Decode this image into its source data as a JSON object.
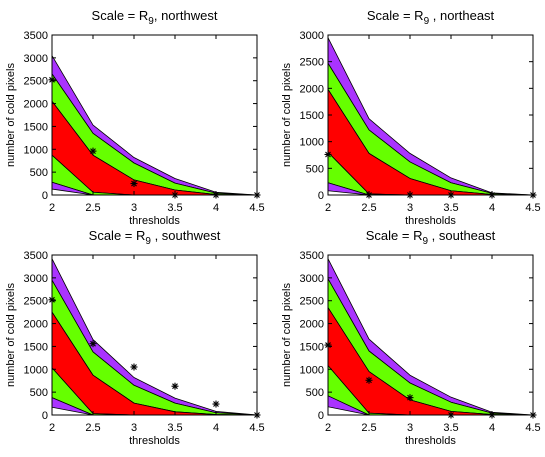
{
  "chart_data": [
    {
      "type": "area",
      "title": {
        "prefix": "Scale = R",
        "subscript": "9",
        "suffix": ",  northwest"
      },
      "xlabel": "thresholds",
      "ylabel": "number of cold pixels",
      "xlim": [
        2,
        4.5
      ],
      "ylim": [
        0,
        3500
      ],
      "x": [
        2,
        2.5,
        3,
        3.5,
        4,
        4.5
      ],
      "xticks": [
        "2",
        "2.5",
        "3",
        "3.5",
        "4",
        "4.5"
      ],
      "yticks": [
        "0",
        "500",
        "1000",
        "1500",
        "2000",
        "2500",
        "3000",
        "3500"
      ],
      "bands": [
        {
          "color": "#aa33ff",
          "upper": [
            3050,
            1530,
            820,
            360,
            60,
            0
          ],
          "lower": [
            2650,
            1350,
            700,
            260,
            40,
            0
          ]
        },
        {
          "color": "#66ff00",
          "upper": [
            2650,
            1350,
            700,
            260,
            40,
            0
          ],
          "lower": [
            2050,
            870,
            330,
            110,
            10,
            0
          ]
        },
        {
          "color": "#ff0000",
          "upper": [
            2050,
            870,
            330,
            110,
            10,
            0
          ],
          "lower": [
            870,
            60,
            0,
            0,
            0,
            0
          ]
        },
        {
          "color": "#66ff00",
          "upper": [
            870,
            60,
            0,
            0,
            0,
            0
          ],
          "lower": [
            280,
            0,
            0,
            0,
            0,
            0
          ]
        },
        {
          "color": "#aa33ff",
          "upper": [
            280,
            0,
            0,
            0,
            0,
            0
          ],
          "lower": [
            130,
            0,
            0,
            0,
            0,
            0
          ]
        }
      ],
      "observed": {
        "x": [
          2,
          2.5,
          3,
          3.5,
          4,
          4.5
        ],
        "y": [
          2520,
          960,
          250,
          0,
          0,
          0
        ]
      }
    },
    {
      "type": "area",
      "title": {
        "prefix": "Scale = R",
        "subscript": "9",
        "suffix": " , northeast"
      },
      "xlabel": "thresholds",
      "ylabel": "number of cold pixels",
      "xlim": [
        2,
        4.5
      ],
      "ylim": [
        0,
        3000
      ],
      "x": [
        2,
        2.5,
        3,
        3.5,
        4,
        4.5
      ],
      "xticks": [
        "2",
        "2.5",
        "3",
        "3.5",
        "4",
        "4.5"
      ],
      "yticks": [
        "0",
        "500",
        "1000",
        "1500",
        "2000",
        "2500",
        "3000"
      ],
      "bands": [
        {
          "color": "#aa33ff",
          "upper": [
            2950,
            1430,
            780,
            320,
            40,
            0
          ],
          "lower": [
            2470,
            1220,
            620,
            230,
            30,
            0
          ]
        },
        {
          "color": "#66ff00",
          "upper": [
            2470,
            1220,
            620,
            230,
            30,
            0
          ],
          "lower": [
            1980,
            780,
            310,
            80,
            10,
            0
          ]
        },
        {
          "color": "#ff0000",
          "upper": [
            1980,
            780,
            310,
            80,
            10,
            0
          ],
          "lower": [
            800,
            20,
            0,
            0,
            0,
            0
          ]
        },
        {
          "color": "#66ff00",
          "upper": [
            800,
            20,
            0,
            0,
            0,
            0
          ],
          "lower": [
            230,
            0,
            0,
            0,
            0,
            0
          ]
        },
        {
          "color": "#aa33ff",
          "upper": [
            230,
            0,
            0,
            0,
            0,
            0
          ],
          "lower": [
            80,
            0,
            0,
            0,
            0,
            0
          ]
        }
      ],
      "observed": {
        "x": [
          2,
          2.5,
          3,
          3.5,
          4,
          4.5
        ],
        "y": [
          760,
          0,
          0,
          0,
          0,
          0
        ]
      }
    },
    {
      "type": "area",
      "title": {
        "prefix": "Scale = R",
        "subscript": "9",
        "suffix": " , southwest"
      },
      "xlabel": "thresholds",
      "ylabel": "number of cold pixels",
      "xlim": [
        2,
        4.5
      ],
      "ylim": [
        0,
        3500
      ],
      "x": [
        2,
        2.5,
        3,
        3.5,
        4,
        4.5
      ],
      "xticks": [
        "2",
        "2.5",
        "3",
        "3.5",
        "4",
        "4.5"
      ],
      "yticks": [
        "0",
        "500",
        "1000",
        "1500",
        "2000",
        "2500",
        "3000",
        "3500"
      ],
      "bands": [
        {
          "color": "#aa33ff",
          "upper": [
            3420,
            1650,
            820,
            370,
            80,
            0
          ],
          "lower": [
            2950,
            1380,
            650,
            260,
            50,
            0
          ]
        },
        {
          "color": "#66ff00",
          "upper": [
            2950,
            1380,
            650,
            260,
            50,
            0
          ],
          "lower": [
            2250,
            870,
            260,
            70,
            10,
            0
          ]
        },
        {
          "color": "#ff0000",
          "upper": [
            2250,
            870,
            260,
            70,
            10,
            0
          ],
          "lower": [
            1030,
            30,
            0,
            0,
            0,
            0
          ]
        },
        {
          "color": "#66ff00",
          "upper": [
            1030,
            30,
            0,
            0,
            0,
            0
          ],
          "lower": [
            380,
            0,
            0,
            0,
            0,
            0
          ]
        },
        {
          "color": "#aa33ff",
          "upper": [
            380,
            0,
            0,
            0,
            0,
            0
          ],
          "lower": [
            170,
            0,
            0,
            0,
            0,
            0
          ]
        }
      ],
      "observed": {
        "x": [
          2,
          2.5,
          3,
          3.5,
          4,
          4.5
        ],
        "y": [
          2520,
          1560,
          1050,
          630,
          240,
          0
        ]
      }
    },
    {
      "type": "area",
      "title": {
        "prefix": "Scale = R",
        "subscript": "9",
        "suffix": " , southeast"
      },
      "xlabel": "thresholds",
      "ylabel": "number of cold pixels",
      "xlim": [
        2,
        4.5
      ],
      "ylim": [
        0,
        3500
      ],
      "x": [
        2,
        2.5,
        3,
        3.5,
        4,
        4.5
      ],
      "xticks": [
        "2",
        "2.5",
        "3",
        "3.5",
        "4",
        "4.5"
      ],
      "yticks": [
        "0",
        "500",
        "1000",
        "1500",
        "2000",
        "2500",
        "3000",
        "3500"
      ],
      "bands": [
        {
          "color": "#aa33ff",
          "upper": [
            3420,
            1660,
            870,
            390,
            60,
            0
          ],
          "lower": [
            2980,
            1400,
            700,
            280,
            40,
            0
          ]
        },
        {
          "color": "#66ff00",
          "upper": [
            2980,
            1400,
            700,
            280,
            40,
            0
          ],
          "lower": [
            2350,
            950,
            330,
            80,
            10,
            0
          ]
        },
        {
          "color": "#ff0000",
          "upper": [
            2350,
            950,
            330,
            80,
            10,
            0
          ],
          "lower": [
            1080,
            40,
            0,
            0,
            0,
            0
          ]
        },
        {
          "color": "#66ff00",
          "upper": [
            1080,
            40,
            0,
            0,
            0,
            0
          ],
          "lower": [
            420,
            0,
            0,
            0,
            0,
            0
          ]
        },
        {
          "color": "#aa33ff",
          "upper": [
            420,
            0,
            0,
            0,
            0,
            0
          ],
          "lower": [
            180,
            0,
            0,
            0,
            0,
            0
          ]
        }
      ],
      "observed": {
        "x": [
          2,
          2.5,
          3,
          3.5,
          4,
          4.5
        ],
        "y": [
          1530,
          760,
          380,
          0,
          0,
          0
        ]
      }
    }
  ]
}
